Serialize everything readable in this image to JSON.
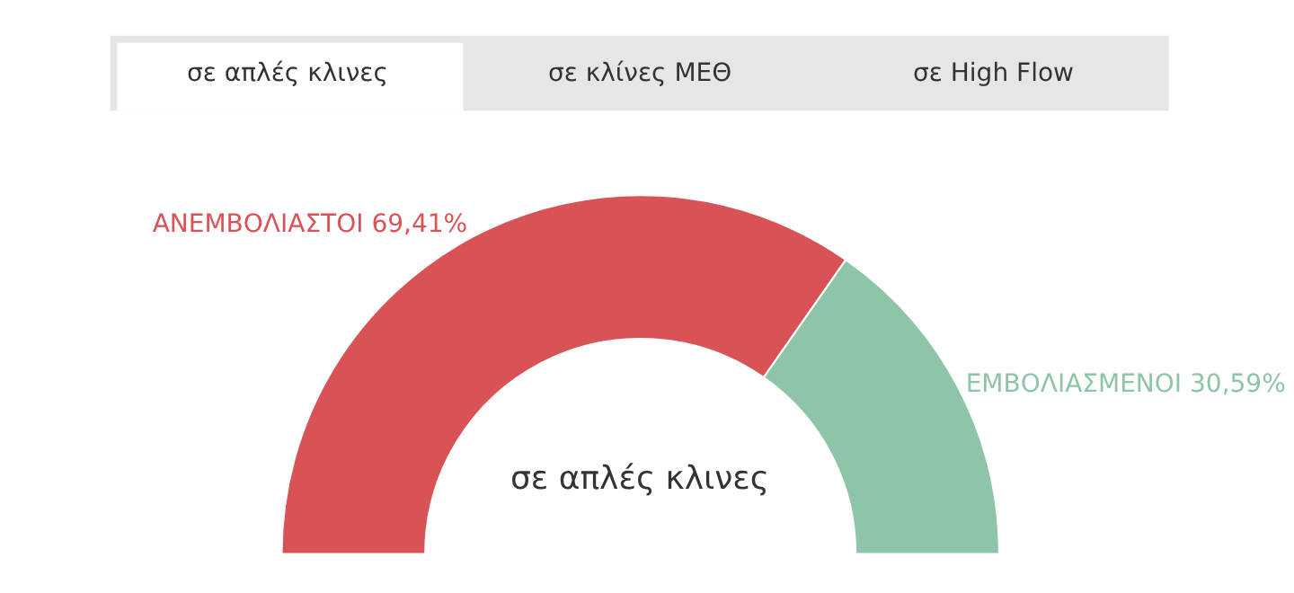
{
  "chart_data": {
    "type": "donut",
    "title": "σε απλές κλινες",
    "annotations": [
      "σε απλές κλινες",
      "σε κλίνες ΜΕΘ",
      "σε High Flow"
    ],
    "categories": [
      "ΑΝΕΜΒΟΛΙΑΣΤΟΙ",
      "ΕΜΒΟΛΙΑΣΜΕΝΟΙ"
    ],
    "values": [
      69.41,
      30.59
    ],
    "value_labels": [
      "69,41%",
      "30,59%"
    ],
    "colors": [
      "#d95356",
      "#8ec5a8"
    ],
    "legend": false
  }
}
